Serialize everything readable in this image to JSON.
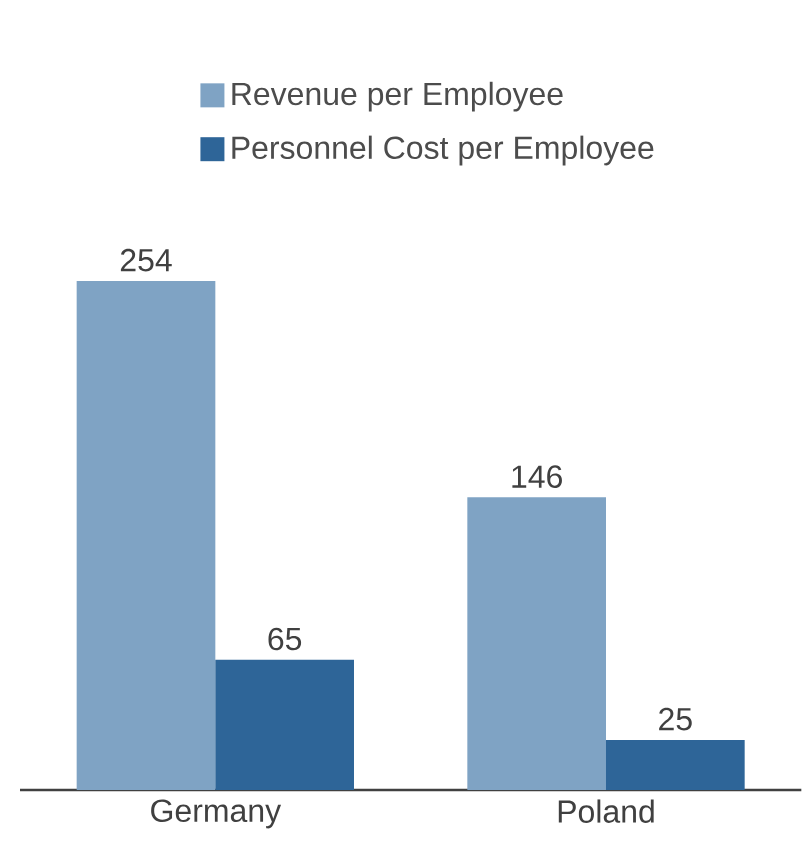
{
  "chart_data": {
    "type": "bar",
    "categories": [
      "Germany",
      "Poland"
    ],
    "series": [
      {
        "name": "Revenue per Employee",
        "color": "#7fa3c4",
        "values": [
          254,
          146
        ]
      },
      {
        "name": "Personnel Cost per Employee",
        "color": "#2e6598",
        "values": [
          65,
          25
        ]
      }
    ],
    "data_labels": true,
    "legend": "top"
  }
}
